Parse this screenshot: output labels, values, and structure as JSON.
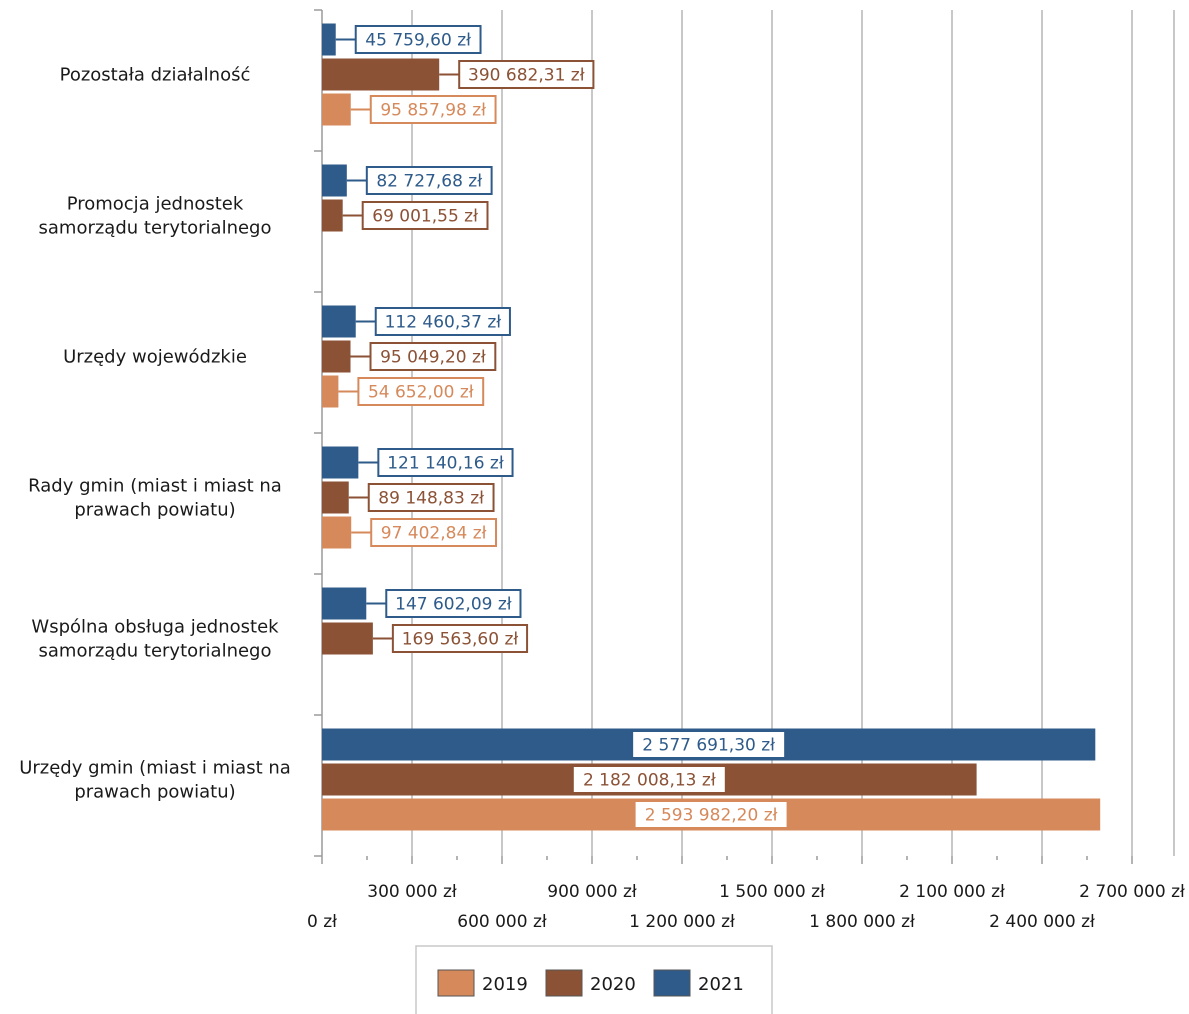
{
  "chart_data": {
    "type": "bar",
    "orientation": "horizontal",
    "categories": [
      "Pozostała działalność",
      "Promocja jednostek samorządu terytorialnego",
      "Urzędy wojewódzkie",
      "Rady gmin (miast i miast na prawach powiatu)",
      "Wspólna obsługa jednostek samorządu terytorialnego",
      "Urzędy gmin (miast i miast na prawach powiatu)"
    ],
    "category_lines": [
      [
        "Pozostała działalność"
      ],
      [
        "Promocja jednostek",
        "samorządu terytorialnego"
      ],
      [
        "Urzędy wojewódzkie"
      ],
      [
        "Rady gmin (miast i miast na",
        "prawach powiatu)"
      ],
      [
        "Wspólna obsługa jednostek",
        "samorządu terytorialnego"
      ],
      [
        "Urzędy gmin (miast i miast na",
        "prawach powiatu)"
      ]
    ],
    "series": [
      {
        "name": "2021",
        "color": "#2e5b8a",
        "values": [
          45759.6,
          82727.68,
          112460.37,
          121140.16,
          147602.09,
          2577691.3
        ],
        "labels": [
          "45 759,60 zł",
          "82 727,68 zł",
          "112 460,37 zł",
          "121 140,16 zł",
          "147 602,09 zł",
          "2 577 691,30 zł"
        ]
      },
      {
        "name": "2020",
        "color": "#8b5236",
        "values": [
          390682.31,
          69001.55,
          95049.2,
          89148.83,
          169563.6,
          2182008.13
        ],
        "labels": [
          "390 682,31 zł",
          "69 001,55 zł",
          "95 049,20 zł",
          "89 148,83 zł",
          "169 563,60 zł",
          "2 182 008,13 zł"
        ]
      },
      {
        "name": "2019",
        "color": "#d6895b",
        "values": [
          95857.98,
          null,
          54652.0,
          97402.84,
          null,
          2593982.2
        ],
        "labels": [
          "95 857,98 zł",
          "",
          "54 652,00 zł",
          "97 402,84 zł",
          "",
          "2 593 982,20 zł"
        ]
      }
    ],
    "xlim": [
      0,
      2800000
    ],
    "x_ticks": [
      0,
      300000,
      600000,
      900000,
      1200000,
      1500000,
      1800000,
      2100000,
      2400000,
      2700000
    ],
    "x_tick_labels": [
      "0 zł",
      "300 000 zł",
      "600 000 zł",
      "900 000 zł",
      "1 200 000 zł",
      "1 500 000 zł",
      "1 800 000 zł",
      "2 100 000 zł",
      "2 400 000 zł",
      "2 700 000 zł"
    ],
    "legend": {
      "position": "bottom",
      "items": [
        {
          "name": "2019",
          "color": "#d6895b"
        },
        {
          "name": "2020",
          "color": "#8b5236"
        },
        {
          "name": "2021",
          "color": "#2e5b8a"
        }
      ]
    },
    "grid": true,
    "title": "",
    "xlabel": "",
    "ylabel": ""
  }
}
